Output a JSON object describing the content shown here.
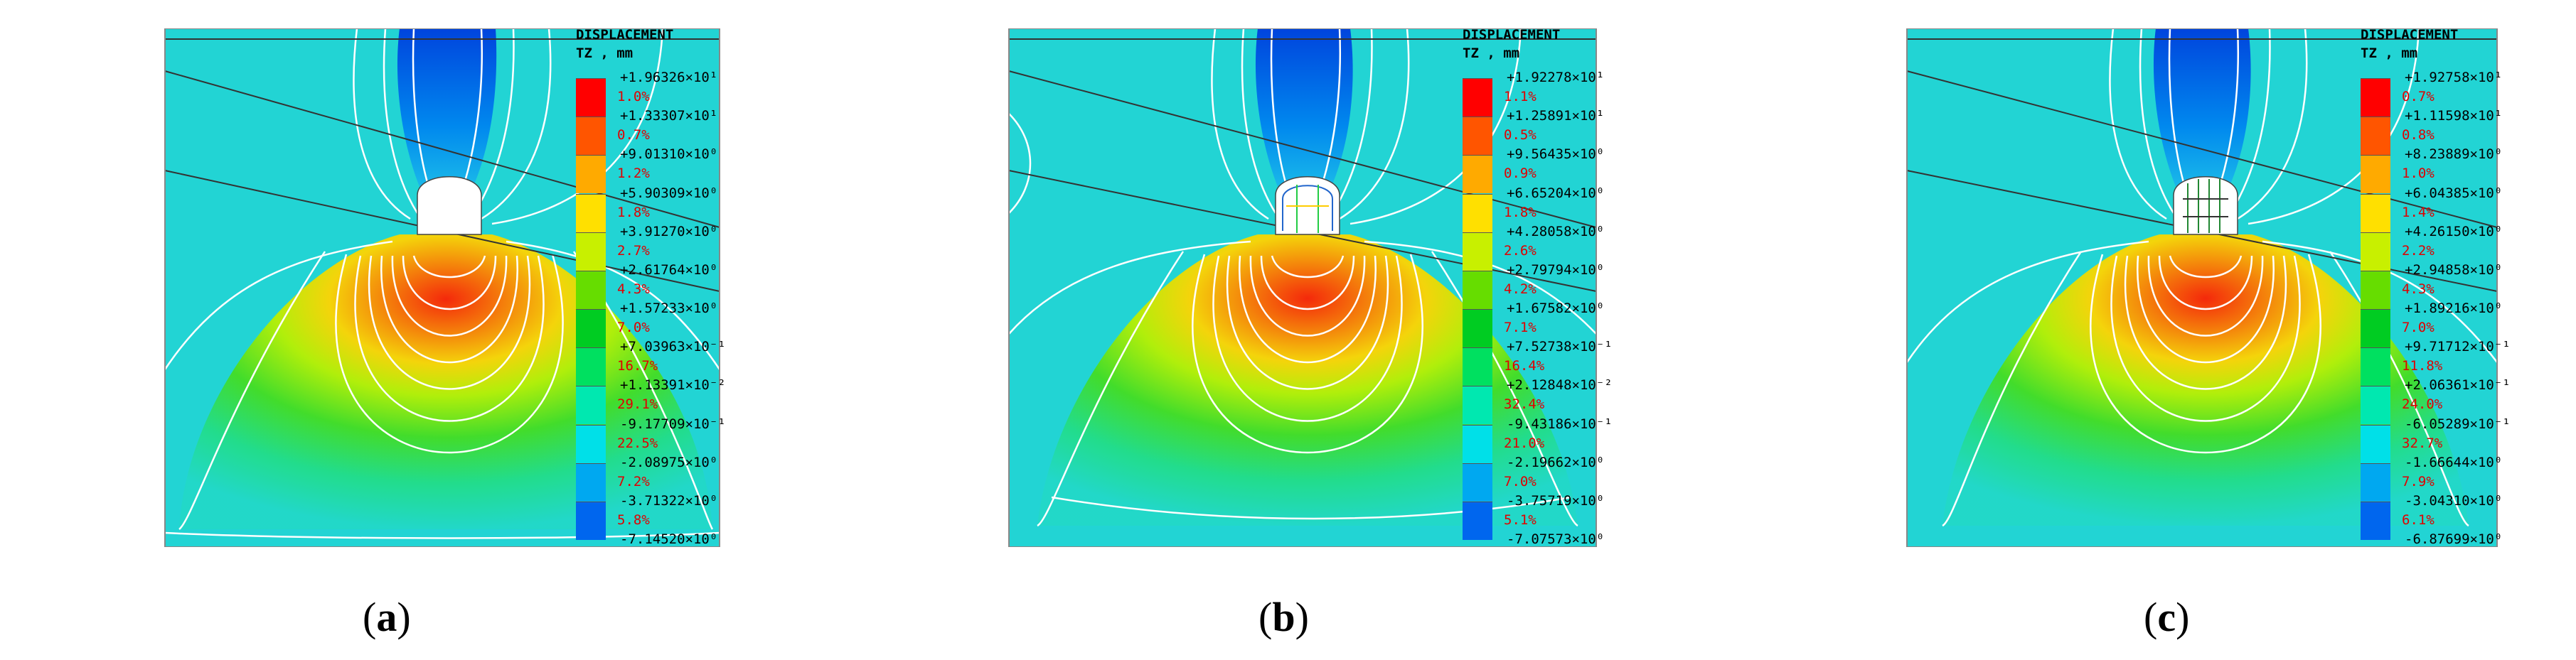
{
  "legend_title": "DISPLACEMENT",
  "legend_sub": "TZ , mm",
  "colors": [
    "#ff0000",
    "#ff5500",
    "#ffaa00",
    "#ffe000",
    "#c8f000",
    "#66dd00",
    "#00cc22",
    "#00e060",
    "#00e8b0",
    "#00e0e8",
    "#00a8f0",
    "#0066ee",
    "#0000ff"
  ],
  "panels": [
    {
      "id": "a",
      "caption_letter": "a",
      "ticks": [
        "+1.96326×10¹",
        "+1.33307×10¹",
        "+9.01310×10⁰",
        "+5.90309×10⁰",
        "+3.91270×10⁰",
        "+2.61764×10⁰",
        "+1.57233×10⁰",
        "+7.03963×10⁻¹",
        "+1.13391×10⁻²",
        "-9.17709×10⁻¹",
        "-2.08975×10⁰",
        "-3.71322×10⁰",
        "-7.14520×10⁰"
      ],
      "percents": [
        "1.0%",
        "0.7%",
        "1.2%",
        "1.8%",
        "2.7%",
        "4.3%",
        "7.0%",
        "16.7%",
        "29.1%",
        "22.5%",
        "7.2%",
        "5.8%"
      ]
    },
    {
      "id": "b",
      "caption_letter": "b",
      "ticks": [
        "+1.92278×10¹",
        "+1.25891×10¹",
        "+9.56435×10⁰",
        "+6.65204×10⁰",
        "+4.28058×10⁰",
        "+2.79794×10⁰",
        "+1.67582×10⁰",
        "+7.52738×10⁻¹",
        "+2.12848×10⁻²",
        "-9.43186×10⁻¹",
        "-2.19662×10⁰",
        "-3.75719×10⁰",
        "-7.07573×10⁰"
      ],
      "percents": [
        "1.1%",
        "0.5%",
        "0.9%",
        "1.8%",
        "2.6%",
        "4.2%",
        "7.1%",
        "16.4%",
        "32.4%",
        "21.0%",
        "7.0%",
        "5.1%"
      ]
    },
    {
      "id": "c",
      "caption_letter": "c",
      "ticks": [
        "+1.92758×10¹",
        "+1.11598×10¹",
        "+8.23889×10⁰",
        "+6.04385×10⁰",
        "+4.26150×10⁰",
        "+2.94858×10⁰",
        "+1.89216×10⁰",
        "+9.71712×10⁻¹",
        "+2.06361×10⁻¹",
        "-6.05289×10⁻¹",
        "-1.66644×10⁰",
        "-3.04310×10⁰",
        "-6.87699×10⁰"
      ],
      "percents": [
        "0.7%",
        "0.8%",
        "1.0%",
        "1.4%",
        "2.2%",
        "4.3%",
        "7.0%",
        "11.8%",
        "24.0%",
        "32.7%",
        "7.9%",
        "6.1%"
      ]
    }
  ]
}
